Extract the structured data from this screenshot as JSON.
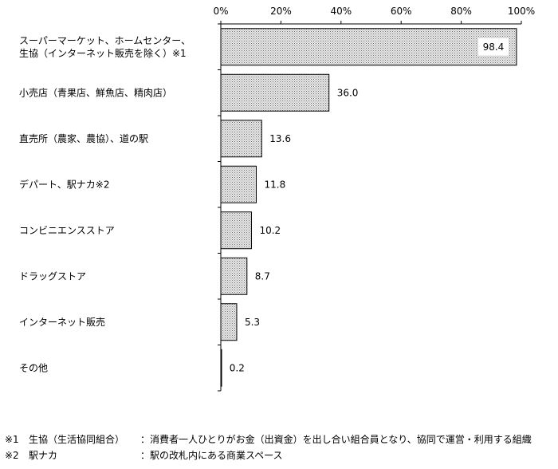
{
  "chart_data": {
    "type": "bar",
    "orientation": "horizontal",
    "categories": [
      [
        "スーパーマーケット、ホームセンター、",
        "生協（インターネット販売を除く）※1"
      ],
      [
        "小売店（青果店、鮮魚店、精肉店）"
      ],
      [
        "直売所（農家、農協）、道の駅"
      ],
      [
        "デパート、駅ナカ※2"
      ],
      [
        "コンビニエンスストア"
      ],
      [
        "ドラッグストア"
      ],
      [
        "インターネット販売"
      ],
      [
        "その他"
      ]
    ],
    "values": [
      98.4,
      36.0,
      13.6,
      11.8,
      10.2,
      8.7,
      5.3,
      0.2
    ],
    "value_labels": [
      "98.4",
      "36.0",
      "13.6",
      "11.8",
      "10.2",
      "8.7",
      "5.3",
      "0.2"
    ],
    "x_ticks": [
      "0%",
      "20%",
      "40%",
      "60%",
      "80%",
      "100%"
    ],
    "xlim": [
      0,
      100
    ],
    "grid": false,
    "bar_fill": "dotted gray",
    "title": "",
    "xlabel": "",
    "ylabel": ""
  },
  "notes": [
    {
      "mark": "※1",
      "term": "生協（生活協同組合）",
      "desc": "：消費者一人ひとりがお金（出資金）を出し合い組合員となり、協同で運営・利用する組織"
    },
    {
      "mark": "※2",
      "term": "駅ナカ",
      "desc": "：駅の改札内にある商業スペース"
    }
  ]
}
